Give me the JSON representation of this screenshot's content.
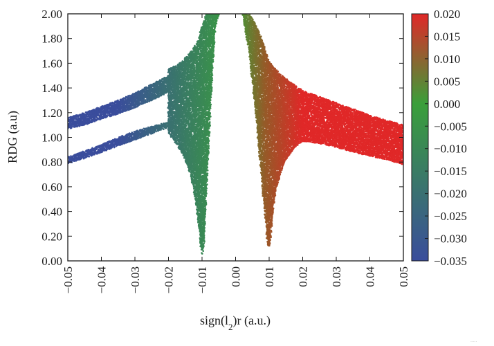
{
  "chart_data": {
    "type": "scatter",
    "title": "",
    "xlabel": "sign(l2)r (a.u.)",
    "ylabel": "RDG (a.u)",
    "xlim": [
      -0.05,
      0.05
    ],
    "ylim": [
      0.0,
      2.0
    ],
    "x_ticks": [
      "−0.05",
      "−0.04",
      "−0.03",
      "−0.02",
      "−0.01",
      "0.00",
      "0.01",
      "0.02",
      "0.03",
      "0.04",
      "0.05"
    ],
    "x_tick_values": [
      -0.05,
      -0.04,
      -0.03,
      -0.02,
      -0.01,
      0.0,
      0.01,
      0.02,
      0.03,
      0.04,
      0.05
    ],
    "y_ticks": [
      "0.00",
      "0.20",
      "0.40",
      "0.60",
      "0.80",
      "1.00",
      "1.20",
      "1.40",
      "1.60",
      "1.80",
      "2.00"
    ],
    "y_tick_values": [
      0.0,
      0.2,
      0.4,
      0.6,
      0.8,
      1.0,
      1.2,
      1.4,
      1.6,
      1.8,
      2.0
    ],
    "grid": false,
    "legend": "none",
    "colorbar": {
      "placement": "right",
      "min": -0.035,
      "max": 0.02,
      "colors": [
        "#3a4d9c",
        "#3a9f3a",
        "#e02828"
      ],
      "ticks": [
        "0.020",
        "0.015",
        "0.010",
        "0.005",
        "0.000",
        "−0.005",
        "−0.010",
        "−0.015",
        "−0.020",
        "−0.025",
        "−0.030",
        "−0.035"
      ],
      "tick_values": [
        0.02,
        0.015,
        0.01,
        0.005,
        0.0,
        -0.005,
        -0.01,
        -0.015,
        -0.02,
        -0.025,
        -0.03,
        -0.035
      ]
    },
    "series": [
      {
        "region": "upper-left wing",
        "x": [
          -0.05,
          -0.045,
          -0.04,
          -0.035,
          -0.03,
          -0.025,
          -0.022,
          -0.02
        ],
        "y_low": [
          1.07,
          1.1,
          1.15,
          1.19,
          1.24,
          1.3,
          1.34,
          1.37
        ],
        "y_high": [
          1.16,
          1.2,
          1.25,
          1.3,
          1.36,
          1.43,
          1.47,
          1.5
        ]
      },
      {
        "region": "lower-left wing",
        "x": [
          -0.05,
          -0.045,
          -0.04,
          -0.035,
          -0.03,
          -0.025,
          -0.022,
          -0.02
        ],
        "y_low": [
          0.79,
          0.83,
          0.88,
          0.93,
          0.98,
          1.03,
          1.06,
          1.08
        ],
        "y_high": [
          0.84,
          0.89,
          0.94,
          1.0,
          1.05,
          1.09,
          1.11,
          1.12
        ]
      },
      {
        "region": "left spike",
        "x": [
          -0.02,
          -0.018,
          -0.016,
          -0.014,
          -0.013,
          -0.012,
          -0.011,
          -0.0105,
          -0.01,
          -0.0095,
          -0.009,
          -0.008,
          -0.007,
          -0.006,
          -0.005,
          -0.004,
          -0.003
        ],
        "y_low": [
          1.04,
          0.96,
          0.88,
          0.75,
          0.64,
          0.5,
          0.3,
          0.15,
          0.05,
          0.12,
          0.4,
          0.95,
          1.5,
          1.9,
          2.0,
          2.0,
          2.0
        ],
        "y_high": [
          1.55,
          1.58,
          1.62,
          1.67,
          1.7,
          1.75,
          1.8,
          1.85,
          1.9,
          1.95,
          2.0,
          2.0,
          2.0,
          2.0,
          2.0,
          2.0,
          2.0
        ]
      },
      {
        "region": "right spike",
        "x": [
          0.0005,
          0.002,
          0.004,
          0.006,
          0.007,
          0.008,
          0.009,
          0.0095,
          0.01,
          0.0105,
          0.011,
          0.012,
          0.014,
          0.016,
          0.018,
          0.02
        ],
        "y_low": [
          2.0,
          2.0,
          1.7,
          1.2,
          0.9,
          0.6,
          0.3,
          0.15,
          0.1,
          0.2,
          0.38,
          0.58,
          0.76,
          0.86,
          0.93,
          0.97
        ],
        "y_high": [
          2.0,
          2.0,
          2.0,
          1.92,
          1.85,
          1.78,
          1.7,
          1.66,
          1.62,
          1.6,
          1.58,
          1.55,
          1.5,
          1.45,
          1.42,
          1.38
        ]
      },
      {
        "region": "right wing",
        "x": [
          0.02,
          0.025,
          0.03,
          0.035,
          0.04,
          0.045,
          0.05
        ],
        "y_low": [
          0.97,
          0.95,
          0.92,
          0.88,
          0.85,
          0.82,
          0.78
        ],
        "y_high": [
          1.38,
          1.33,
          1.28,
          1.23,
          1.18,
          1.14,
          1.1
        ]
      }
    ]
  }
}
